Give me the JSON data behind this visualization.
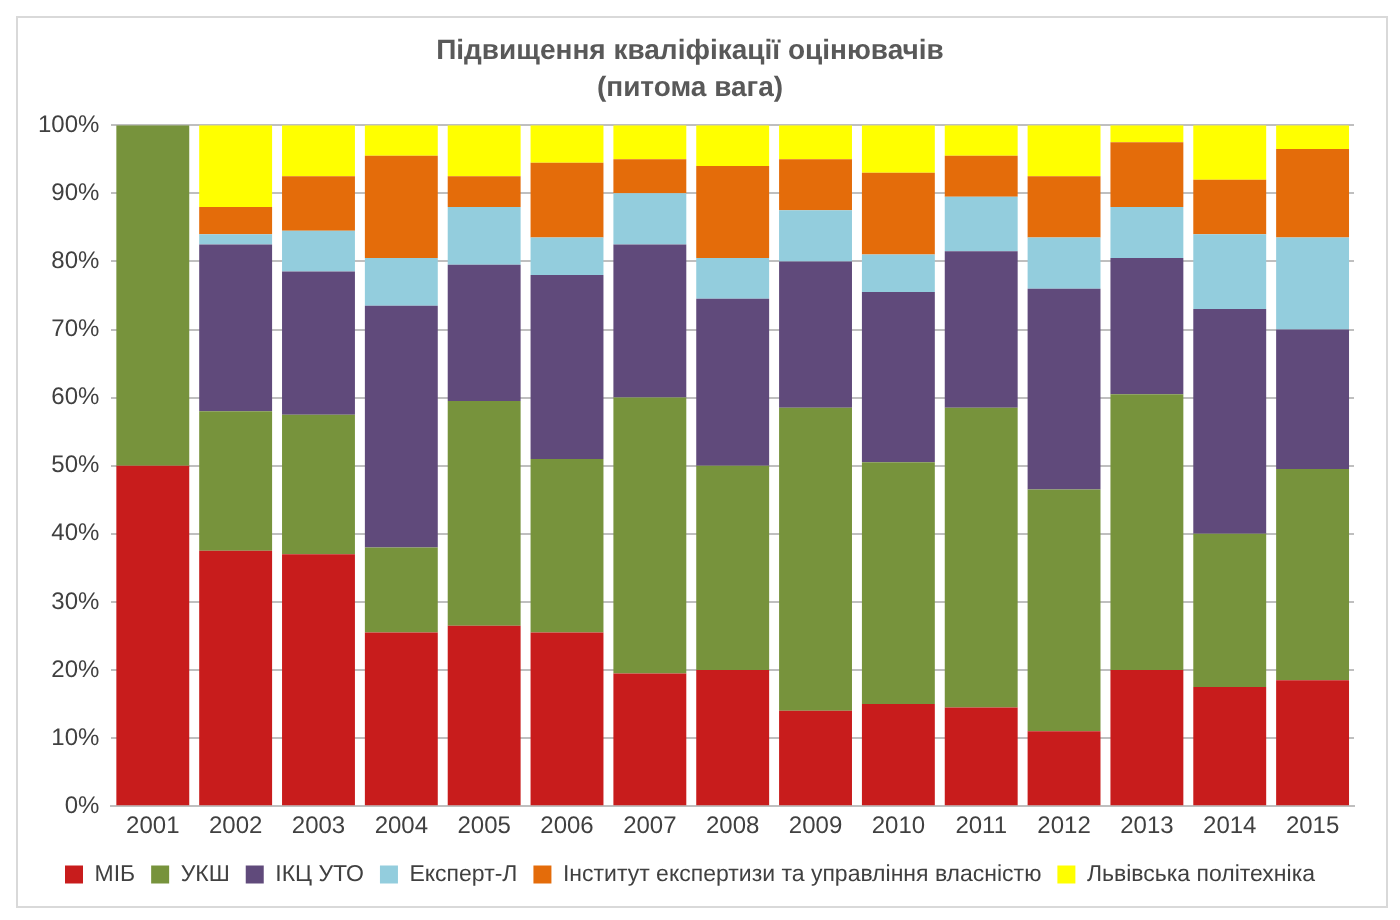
{
  "chart_data": {
    "type": "bar",
    "title": "Підвищення кваліфікації оцінювачів",
    "subtitle": "(питома вага)",
    "categories": [
      "2001",
      "2002",
      "2003",
      "2004",
      "2005",
      "2006",
      "2007",
      "2008",
      "2009",
      "2010",
      "2011",
      "2012",
      "2013",
      "2014",
      "2015"
    ],
    "stacked": true,
    "series": [
      {
        "name": "МІБ",
        "color": "#c81c1c",
        "values": [
          50,
          37.5,
          37,
          25.5,
          26.5,
          25.5,
          19.5,
          20,
          14,
          15,
          14.5,
          11,
          20,
          17.5,
          18.5
        ]
      },
      {
        "name": "УКШ",
        "color": "#77933c",
        "values": [
          50,
          20.5,
          20.5,
          12.5,
          33,
          25.5,
          40.5,
          30,
          44.5,
          35.5,
          44,
          35.5,
          40.5,
          22.5,
          31
        ]
      },
      {
        "name": "ІКЦ УТО",
        "color": "#604a7b",
        "values": [
          0,
          24.5,
          21,
          35.5,
          20,
          27,
          22.5,
          24.5,
          21.5,
          25,
          23,
          29.5,
          20,
          33,
          20.5
        ]
      },
      {
        "name": "Експерт-Л",
        "color": "#93cddd",
        "values": [
          0,
          1.5,
          6,
          7,
          8.5,
          5.5,
          7.5,
          6,
          7.5,
          5.5,
          8,
          7.5,
          7.5,
          11,
          13.5
        ]
      },
      {
        "name": "Інститут експертизи та управління власністю",
        "color": "#e46c0a",
        "values": [
          0,
          4,
          8,
          15,
          4.5,
          11,
          5,
          13.5,
          7.5,
          12,
          6,
          9,
          9.5,
          8,
          13
        ]
      },
      {
        "name": "Львівська політехніка",
        "color": "#ffff00",
        "values": [
          0,
          12,
          7.5,
          4.5,
          7.5,
          5.5,
          5,
          6,
          5,
          7,
          4.5,
          7.5,
          2.5,
          8,
          3.5
        ]
      }
    ],
    "ylim": [
      0,
      100
    ],
    "yticks": [
      {
        "value": 0,
        "label": "0%"
      },
      {
        "value": 10,
        "label": "10%"
      },
      {
        "value": 20,
        "label": "20%"
      },
      {
        "value": 30,
        "label": "30%"
      },
      {
        "value": 40,
        "label": "40%"
      },
      {
        "value": 50,
        "label": "50%"
      },
      {
        "value": 60,
        "label": "60%"
      },
      {
        "value": 70,
        "label": "70%"
      },
      {
        "value": 80,
        "label": "80%"
      },
      {
        "value": 90,
        "label": "90%"
      },
      {
        "value": 100,
        "label": "100%"
      }
    ],
    "grid": "y",
    "legend": "bottom"
  }
}
